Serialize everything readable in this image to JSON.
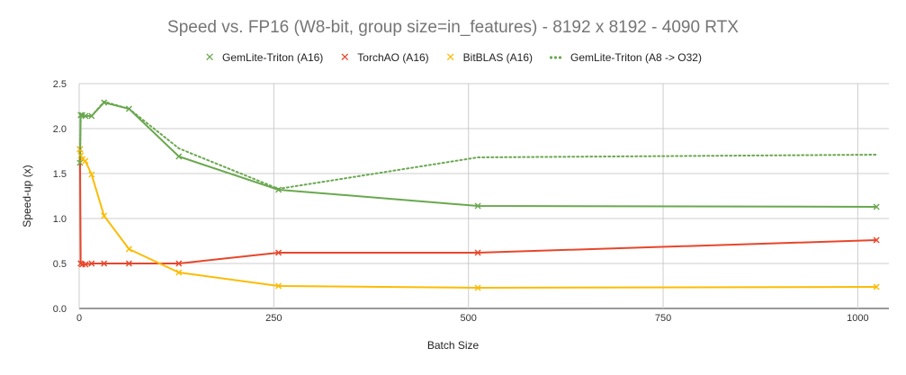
{
  "chart_data": {
    "type": "line",
    "title": "Speed vs. FP16 (W8-bit, group size=in_features) - 8192 x 8192 - 4090 RTX",
    "xlabel": "Batch Size",
    "ylabel": "Speed-up (x)",
    "xlim": [
      0,
      1040
    ],
    "ylim": [
      0,
      2.5
    ],
    "x_ticks": [
      0,
      250,
      500,
      750,
      1000
    ],
    "x_tick_labels": [
      "0",
      "250",
      "500",
      "750",
      "1000"
    ],
    "y_ticks": [
      0,
      0.5,
      1.0,
      1.5,
      2.0,
      2.5
    ],
    "y_tick_labels": [
      "0.0",
      "0.5",
      "1.0",
      "1.5",
      "2.0",
      "2.5"
    ],
    "grid": true,
    "legend_position": "top-center",
    "x": [
      1,
      2,
      4,
      8,
      16,
      32,
      64,
      128,
      256,
      512,
      1024
    ],
    "series": [
      {
        "name": "GemLite-Triton (A16)",
        "color": "#6aa84f",
        "style": "solid",
        "marker": "x",
        "values": [
          1.62,
          2.15,
          2.15,
          2.14,
          2.14,
          2.29,
          2.22,
          1.69,
          1.32,
          1.14,
          1.13
        ]
      },
      {
        "name": "TorchAO (A16)",
        "color": "#e8462b",
        "style": "solid",
        "marker": "x",
        "values": [
          1.77,
          0.5,
          0.49,
          0.49,
          0.5,
          0.5,
          0.5,
          0.5,
          0.62,
          0.62,
          0.76
        ]
      },
      {
        "name": "BitBLAS (A16)",
        "color": "#fbbc04",
        "style": "solid",
        "marker": "x",
        "values": [
          1.77,
          1.7,
          1.66,
          1.64,
          1.49,
          1.03,
          0.66,
          0.4,
          0.25,
          0.23,
          0.24
        ]
      },
      {
        "name": "GemLite-Triton (A8 -> O32)",
        "color": "#6aa84f",
        "style": "dotted",
        "marker": "none",
        "values": [
          1.62,
          2.15,
          2.15,
          2.14,
          2.14,
          2.3,
          2.22,
          1.78,
          1.33,
          1.68,
          1.71
        ]
      }
    ]
  }
}
